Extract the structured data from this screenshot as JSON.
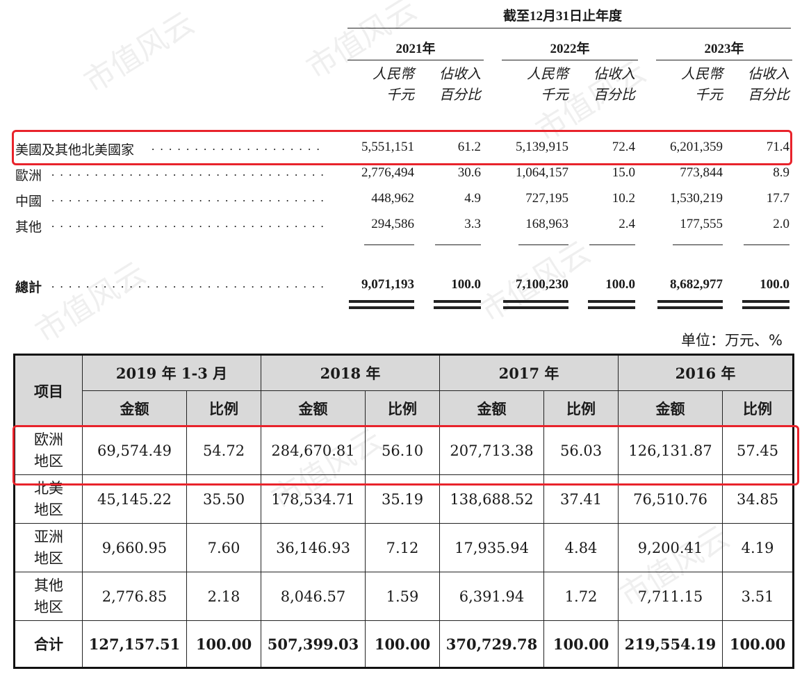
{
  "top_table": {
    "period_header": "截至12月31日止年度",
    "years": [
      "2021年",
      "2022年",
      "2023年"
    ],
    "col_amount": [
      "人民幣",
      "千元"
    ],
    "col_pct": [
      "佔收入",
      "百分比"
    ],
    "rows": [
      {
        "label": "美國及其他北美國家",
        "values": [
          "5,551,151",
          "61.2",
          "5,139,915",
          "72.4",
          "6,201,359",
          "71.4"
        ]
      },
      {
        "label": "歐洲",
        "values": [
          "2,776,494",
          "30.6",
          "1,064,157",
          "15.0",
          "773,844",
          "8.9"
        ]
      },
      {
        "label": "中國",
        "values": [
          "448,962",
          "4.9",
          "727,195",
          "10.2",
          "1,530,219",
          "17.7"
        ]
      },
      {
        "label": "其他",
        "values": [
          "294,586",
          "3.3",
          "168,963",
          "2.4",
          "177,555",
          "2.0"
        ]
      }
    ],
    "total": {
      "label": "總計",
      "values": [
        "9,071,193",
        "100.0",
        "7,100,230",
        "100.0",
        "8,682,977",
        "100.0"
      ]
    }
  },
  "bottom_table": {
    "unit": "单位：万元、%",
    "item_header": "项目",
    "periods": [
      "2019 年 1-3 月",
      "2018 年",
      "2017 年",
      "2016 年"
    ],
    "amount_header": "金额",
    "ratio_header": "比例",
    "rows": [
      {
        "label": [
          "欧洲",
          "地区"
        ],
        "values": [
          "69,574.49",
          "54.72",
          "284,670.81",
          "56.10",
          "207,713.38",
          "56.03",
          "126,131.87",
          "57.45"
        ]
      },
      {
        "label": [
          "北美",
          "地区"
        ],
        "values": [
          "45,145.22",
          "35.50",
          "178,534.71",
          "35.19",
          "138,688.52",
          "37.41",
          "76,510.76",
          "34.85"
        ]
      },
      {
        "label": [
          "亚洲",
          "地区"
        ],
        "values": [
          "9,660.95",
          "7.60",
          "36,146.93",
          "7.12",
          "17,935.94",
          "4.84",
          "9,200.41",
          "4.19"
        ]
      },
      {
        "label": [
          "其他",
          "地区"
        ],
        "values": [
          "2,776.85",
          "2.18",
          "8,046.57",
          "1.59",
          "6,391.94",
          "1.72",
          "7,711.15",
          "3.51"
        ]
      }
    ],
    "total": {
      "label": "合计",
      "values": [
        "127,157.51",
        "100.00",
        "507,399.03",
        "100.00",
        "370,729.78",
        "100.00",
        "219,554.19",
        "100.00"
      ]
    }
  },
  "watermark": "市值风云",
  "highlight_color": "#e8232b"
}
